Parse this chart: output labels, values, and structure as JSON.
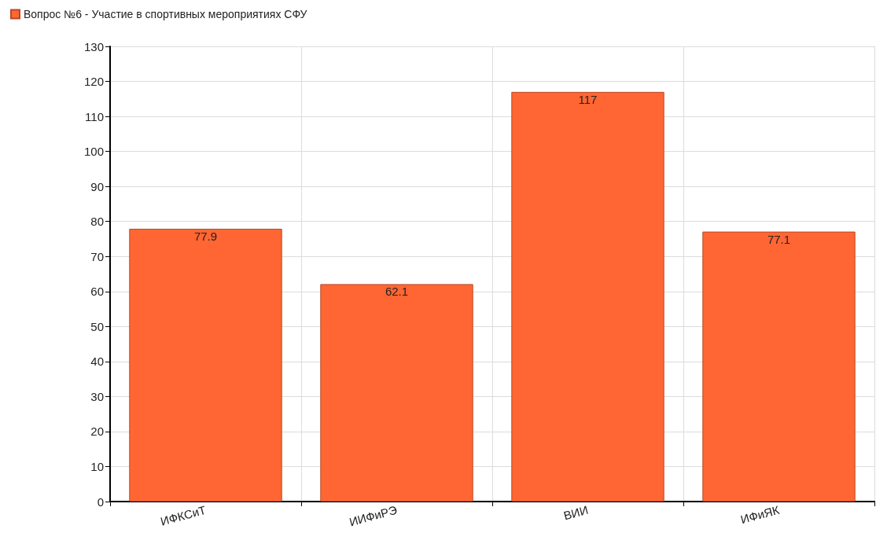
{
  "chart_data": {
    "type": "bar",
    "categories": [
      "ИФКСиТ",
      "ИИФиРЭ",
      "ВИИ",
      "ИФиЯК"
    ],
    "series": [
      {
        "name": "Вопрос №6 - Участие в спортивных мероприятиях СФУ",
        "color": "#ff6633",
        "values": [
          77.9,
          62.1,
          117,
          77.1
        ]
      }
    ],
    "ylim": [
      0,
      130
    ],
    "yticks": [
      0,
      10,
      20,
      30,
      40,
      50,
      60,
      70,
      80,
      90,
      100,
      110,
      120,
      130
    ],
    "grid": true,
    "legend": "top left",
    "data_labels": true
  }
}
